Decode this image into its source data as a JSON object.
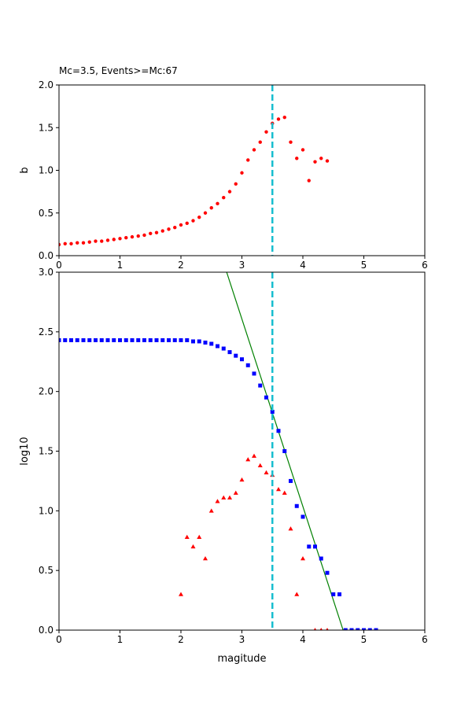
{
  "chart_data": [
    {
      "type": "scatter",
      "title": "Mc=3.5, Events>=Mc:67",
      "xlabel": "",
      "ylabel": "b",
      "xlim": [
        0,
        6
      ],
      "ylim": [
        0,
        2.0
      ],
      "xticks": [
        "0",
        "1",
        "2",
        "3",
        "4",
        "5",
        "6"
      ],
      "yticks": [
        "0.0",
        "0.5",
        "1.0",
        "1.5",
        "2.0"
      ],
      "grid": false,
      "vline": {
        "x": 3.5,
        "color": "#17becf",
        "style": "dashed"
      },
      "series": [
        {
          "marker": "circle",
          "color": "#ff0000",
          "x": [
            0.0,
            0.1,
            0.2,
            0.3,
            0.4,
            0.5,
            0.6,
            0.7,
            0.8,
            0.9,
            1.0,
            1.1,
            1.2,
            1.3,
            1.4,
            1.5,
            1.6,
            1.7,
            1.8,
            1.9,
            2.0,
            2.1,
            2.2,
            2.3,
            2.4,
            2.5,
            2.6,
            2.7,
            2.8,
            2.9,
            3.0,
            3.1,
            3.2,
            3.3,
            3.4,
            3.5,
            3.6,
            3.7,
            3.8,
            3.9,
            4.0,
            4.1,
            4.2,
            4.3,
            4.4
          ],
          "y": [
            0.13,
            0.14,
            0.14,
            0.15,
            0.15,
            0.16,
            0.17,
            0.17,
            0.18,
            0.19,
            0.2,
            0.21,
            0.22,
            0.23,
            0.24,
            0.26,
            0.27,
            0.29,
            0.31,
            0.33,
            0.36,
            0.38,
            0.41,
            0.45,
            0.5,
            0.56,
            0.61,
            0.68,
            0.75,
            0.84,
            0.97,
            1.12,
            1.24,
            1.33,
            1.45,
            1.55,
            1.6,
            1.62,
            1.33,
            1.14,
            1.24,
            0.88,
            1.1,
            1.14,
            1.11
          ]
        }
      ]
    },
    {
      "type": "scatter",
      "title": "",
      "xlabel": "magitude",
      "ylabel": "log10",
      "xlim": [
        0,
        6
      ],
      "ylim": [
        0,
        3.0
      ],
      "xticks": [
        "0",
        "1",
        "2",
        "3",
        "4",
        "5",
        "6"
      ],
      "yticks": [
        "0.0",
        "0.5",
        "1.0",
        "1.5",
        "2.0",
        "2.5",
        "3.0"
      ],
      "grid": false,
      "vline": {
        "x": 3.5,
        "color": "#17becf",
        "style": "dashed"
      },
      "fit_line": {
        "x": [
          2.75,
          4.66
        ],
        "y": [
          3.0,
          0.0
        ],
        "color": "#008000"
      },
      "series": [
        {
          "marker": "square",
          "color": "#0000ff",
          "x": [
            0.0,
            0.1,
            0.2,
            0.3,
            0.4,
            0.5,
            0.6,
            0.7,
            0.8,
            0.9,
            1.0,
            1.1,
            1.2,
            1.3,
            1.4,
            1.5,
            1.6,
            1.7,
            1.8,
            1.9,
            2.0,
            2.1,
            2.2,
            2.3,
            2.4,
            2.5,
            2.6,
            2.7,
            2.8,
            2.9,
            3.0,
            3.1,
            3.2,
            3.3,
            3.4,
            3.5,
            3.6,
            3.7,
            3.8,
            3.9,
            4.0,
            4.1,
            4.2,
            4.3,
            4.4,
            4.5,
            4.6,
            4.7,
            4.8,
            4.9,
            5.0,
            5.1,
            5.2
          ],
          "y": [
            2.43,
            2.43,
            2.43,
            2.43,
            2.43,
            2.43,
            2.43,
            2.43,
            2.43,
            2.43,
            2.43,
            2.43,
            2.43,
            2.43,
            2.43,
            2.43,
            2.43,
            2.43,
            2.43,
            2.43,
            2.43,
            2.43,
            2.42,
            2.42,
            2.41,
            2.4,
            2.38,
            2.36,
            2.33,
            2.3,
            2.27,
            2.22,
            2.15,
            2.05,
            1.95,
            1.83,
            1.67,
            1.5,
            1.25,
            1.04,
            0.95,
            0.7,
            0.7,
            0.6,
            0.48,
            0.3,
            0.3,
            0.0,
            0.0,
            0.0,
            0.0,
            0.0,
            0.0
          ]
        },
        {
          "marker": "triangle",
          "color": "#ff0000",
          "x": [
            2.0,
            2.1,
            2.2,
            2.3,
            2.4,
            2.5,
            2.6,
            2.7,
            2.8,
            2.9,
            3.0,
            3.1,
            3.2,
            3.3,
            3.4,
            3.5,
            3.6,
            3.7,
            3.8,
            3.9,
            4.0,
            4.2,
            4.3,
            4.4
          ],
          "y": [
            0.3,
            0.78,
            0.7,
            0.78,
            0.6,
            1.0,
            1.08,
            1.11,
            1.11,
            1.15,
            1.26,
            1.43,
            1.46,
            1.38,
            1.32,
            1.3,
            1.18,
            1.15,
            0.85,
            0.3,
            0.6,
            0.0,
            0.0,
            0.0
          ]
        }
      ]
    }
  ]
}
